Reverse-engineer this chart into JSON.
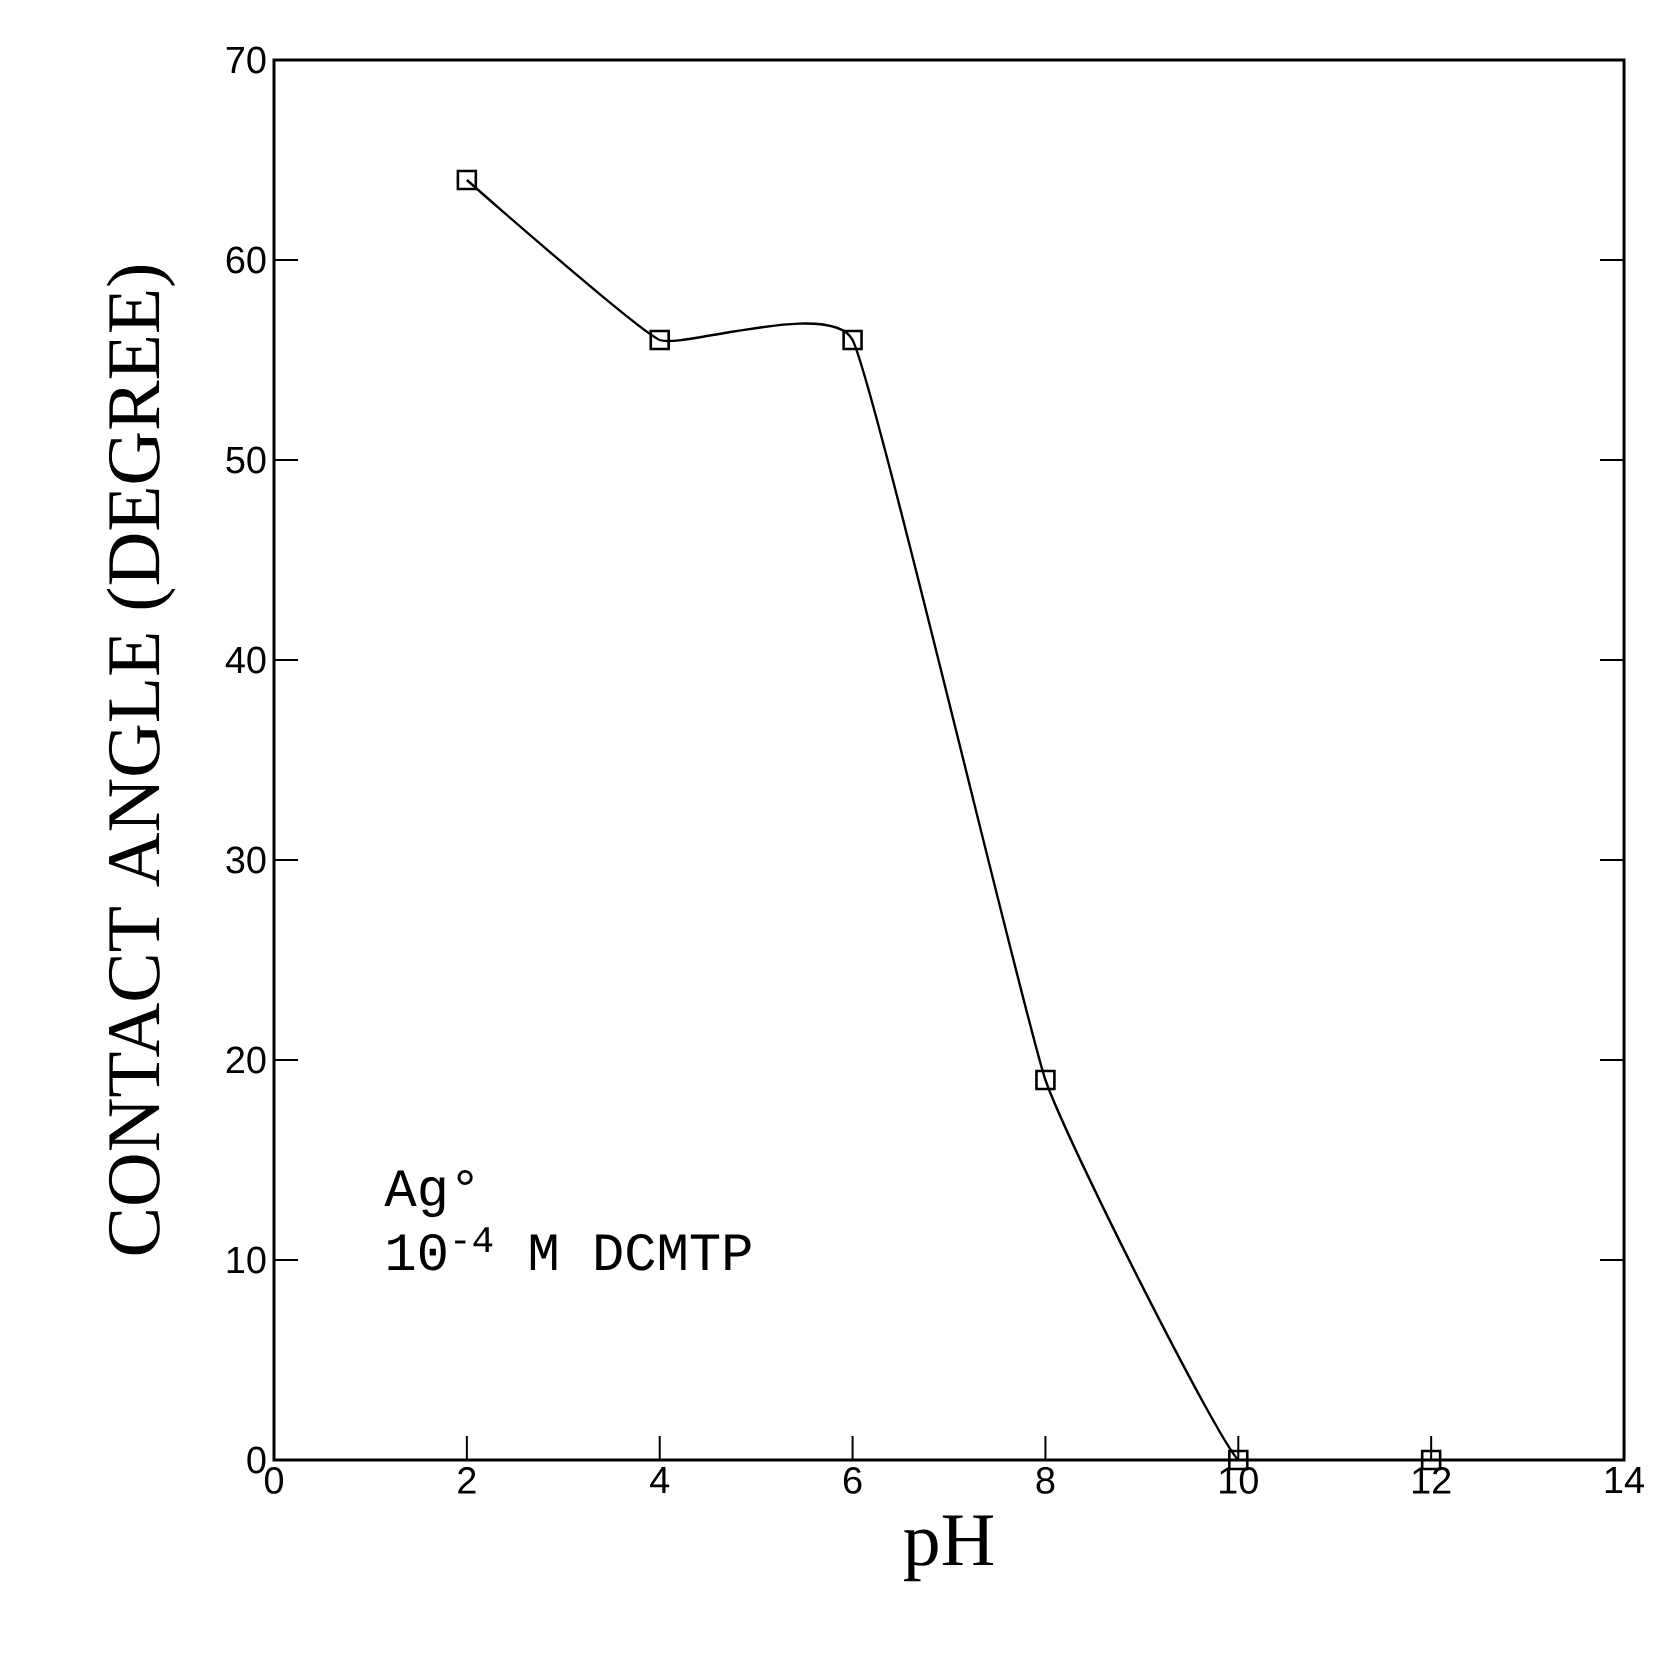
{
  "chart_data": {
    "type": "line",
    "xlabel": "pH",
    "ylabel": "CONTACT ANGLE (DEGREE)",
    "x": [
      2,
      4,
      6,
      8,
      10,
      12
    ],
    "series": [
      {
        "color": "#000000",
        "values": [
          64,
          56,
          56,
          19,
          0,
          0
        ]
      }
    ],
    "xlim": [
      0,
      14
    ],
    "ylim": [
      0,
      70
    ],
    "xticks": [
      0,
      2,
      4,
      6,
      8,
      10,
      12,
      14
    ],
    "yticks": [
      0,
      10,
      20,
      30,
      40,
      50,
      60,
      70
    ],
    "marker": "square",
    "line_style": "solid",
    "annotations": [
      "Ag°",
      "10$^{-4}$ M DCMTP"
    ]
  }
}
